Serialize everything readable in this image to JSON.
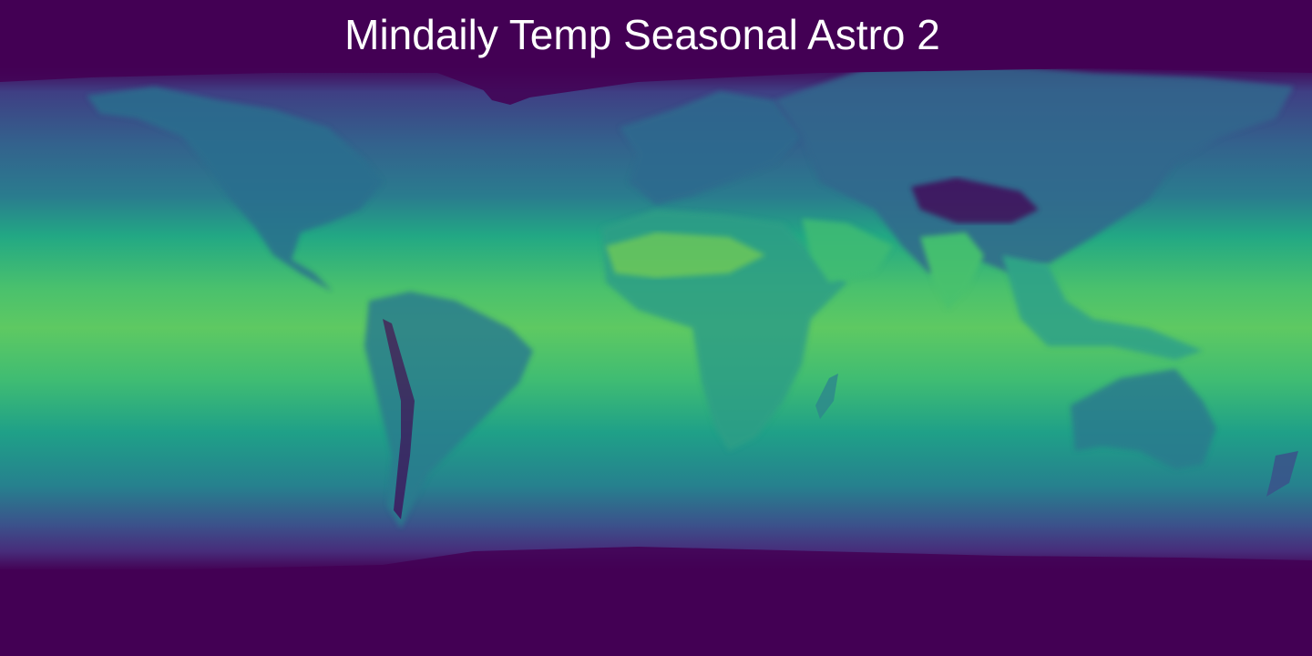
{
  "title": "Mindaily Temp Seasonal Astro 2",
  "map": {
    "projection": "equirectangular",
    "colormap": "viridis",
    "colors": {
      "cold": "#440154",
      "cool": "#3b528b",
      "mid": "#21918c",
      "warm": "#5ec962",
      "hot": "#b5de2b"
    },
    "legend": "none",
    "gridlines": false
  }
}
